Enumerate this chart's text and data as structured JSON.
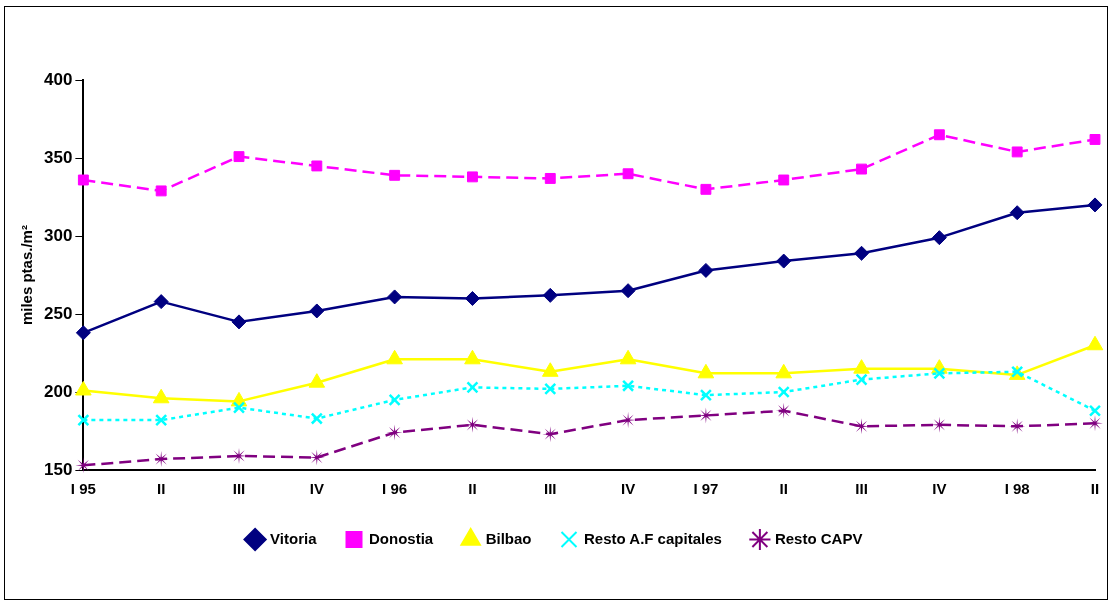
{
  "chart_data": {
    "type": "line",
    "ylabel": "miles ptas./m²",
    "categories": [
      "I 95",
      "II",
      "III",
      "IV",
      "I 96",
      "II",
      "III",
      "IV",
      "I 97",
      "II",
      "III",
      "IV",
      "I 98",
      "II"
    ],
    "ylim": [
      150,
      400
    ],
    "yticks": [
      150,
      200,
      250,
      300,
      350,
      400
    ],
    "grid": false,
    "legend": "bottom",
    "series": [
      {
        "name": "Vitoria",
        "color": "#000080",
        "marker": "diamond",
        "line_style": "solid",
        "values": [
          238,
          258,
          245,
          252,
          261,
          260,
          262,
          265,
          278,
          284,
          289,
          299,
          315,
          320
        ]
      },
      {
        "name": "Donostia",
        "color": "#ff00ff",
        "marker": "square",
        "line_style": "dashed",
        "values": [
          336,
          329,
          351,
          345,
          339,
          338,
          337,
          340,
          330,
          336,
          343,
          365,
          354,
          362
        ]
      },
      {
        "name": "Bilbao",
        "color": "#ffff00",
        "marker": "triangle",
        "line_style": "solid",
        "values": [
          201,
          196,
          194,
          206,
          221,
          221,
          213,
          221,
          212,
          212,
          215,
          215,
          211,
          230
        ]
      },
      {
        "name": "Resto A.F capitales",
        "color": "#00ffff",
        "marker": "cross",
        "line_style": "dotted",
        "values": [
          182,
          182,
          190,
          183,
          195,
          203,
          202,
          204,
          198,
          200,
          208,
          212,
          213,
          188
        ]
      },
      {
        "name": "Resto CAPV",
        "color": "#800080",
        "marker": "star",
        "line_style": "dashed",
        "values": [
          153,
          157,
          159,
          158,
          174,
          179,
          173,
          182,
          185,
          188,
          178,
          179,
          178,
          180
        ]
      }
    ]
  }
}
